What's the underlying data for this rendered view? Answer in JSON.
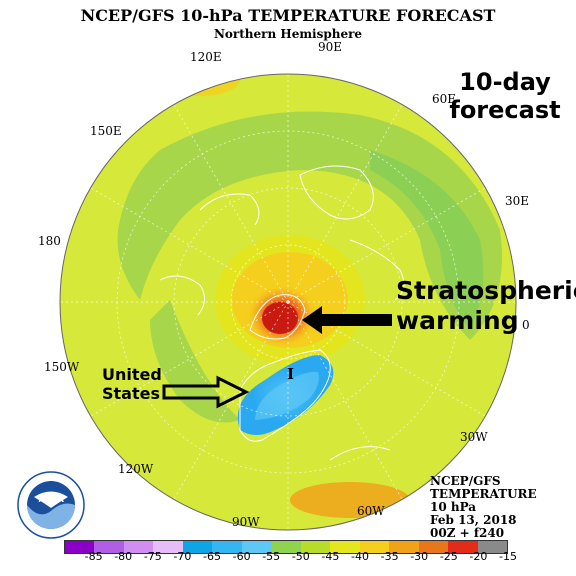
{
  "title": "NCEP/GFS 10-hPa TEMPERATURE FORECAST",
  "subtitle": "Northern Hemisphere",
  "longitude_labels": [
    "90E",
    "60E",
    "30E",
    "0",
    "30W",
    "60W",
    "90W",
    "120W",
    "150W",
    "180",
    "150E",
    "120E"
  ],
  "annotations": {
    "forecast_line1": "10-day",
    "forecast_line2": "forecast",
    "warming_line1": "Stratospheric",
    "warming_line2": "warming",
    "us_line1": "United",
    "us_line2": "States",
    "cold_marker": "I"
  },
  "info_box": {
    "line1": "NCEP/GFS",
    "line2": "TEMPERATURE",
    "line3": "10 hPa",
    "line4": "Feb 13, 2018",
    "line5": "00Z + f240"
  },
  "colorbar": {
    "labels": [
      "-85",
      "-80",
      "-75",
      "-70",
      "-65",
      "-60",
      "-55",
      "-50",
      "-45",
      "-40",
      "-35",
      "-30",
      "-25",
      "-20",
      "-15"
    ],
    "colors": [
      "#8b00c8",
      "#b15ee6",
      "#d08ef2",
      "#e6bdf7",
      "#0ea5e6",
      "#34b6f2",
      "#5ec8f5",
      "#8fd34e",
      "#b7dc2a",
      "#e4e61e",
      "#f5cf1d",
      "#f0a21b",
      "#e8761b",
      "#e32b1a",
      "#8a8a8a"
    ]
  },
  "logo": {
    "text": "NOAA"
  },
  "colors": {
    "background_field": "#d6e83a",
    "dark_green_band": "#8ccf55",
    "warm_core": "#e23414",
    "cold_core": "#2aa8f0"
  }
}
